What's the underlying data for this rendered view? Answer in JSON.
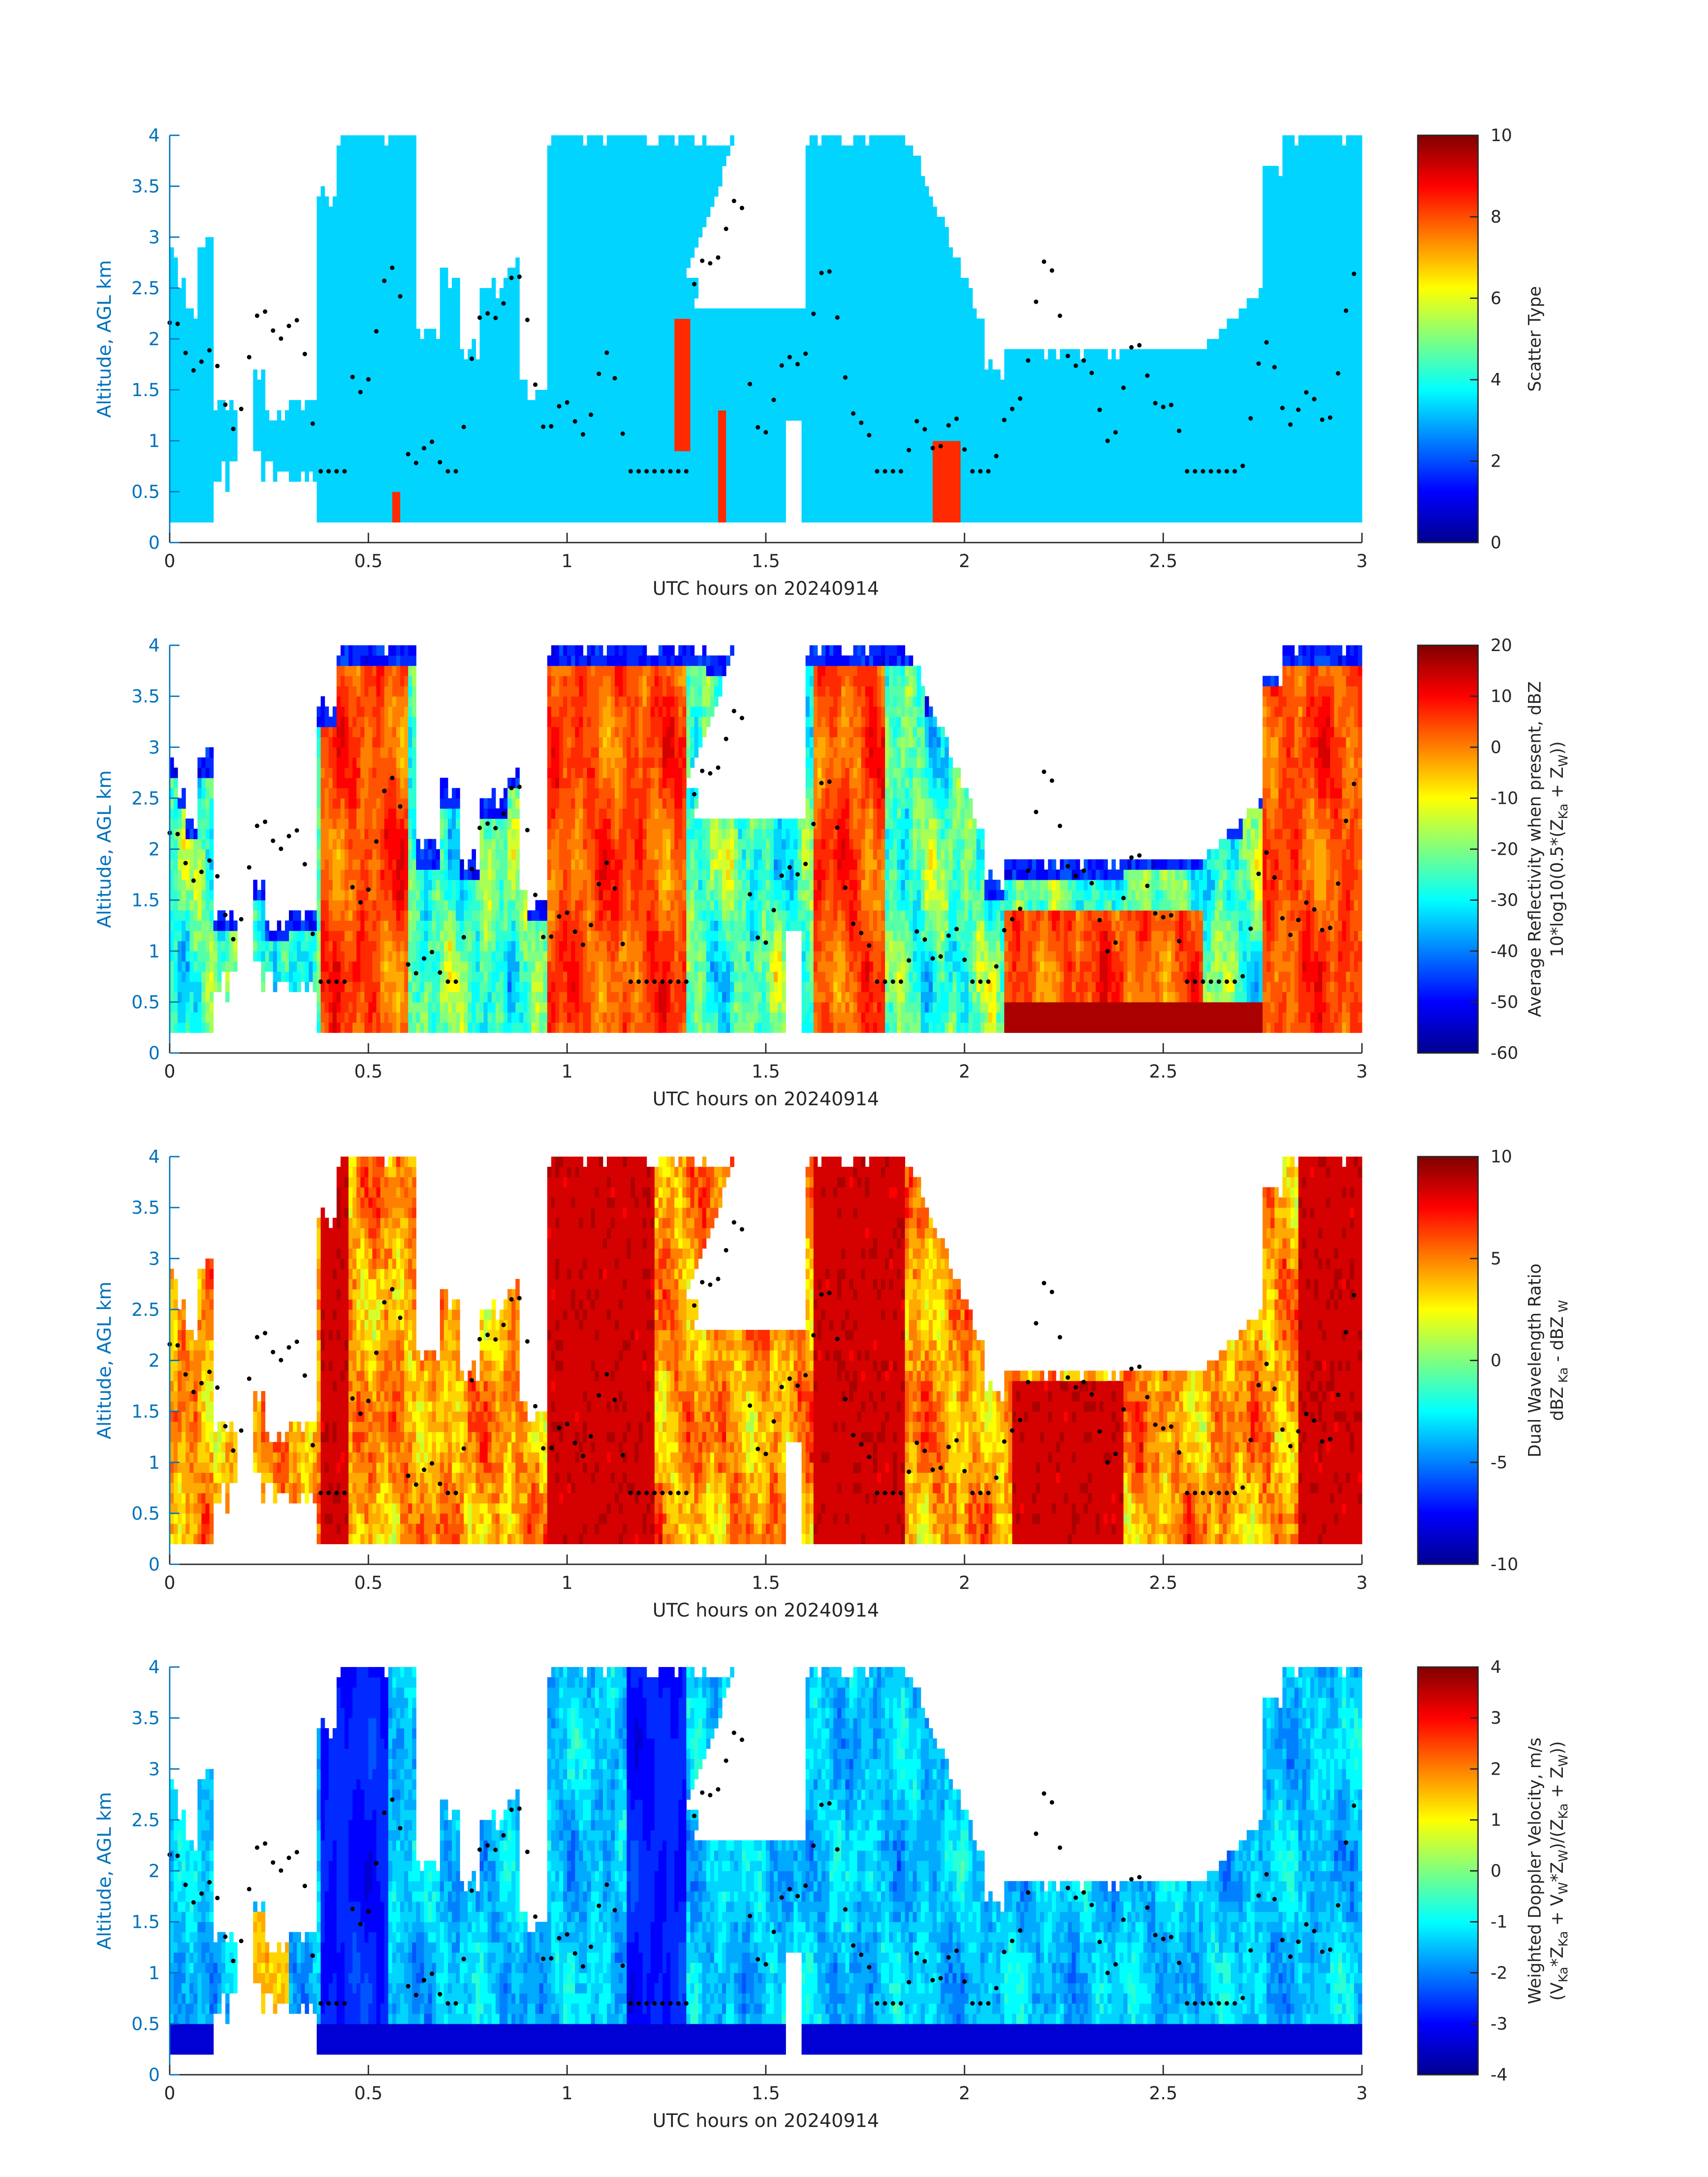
{
  "figure": {
    "date_label": "UTC hours on 20240914",
    "ylabel": "Altitude, AGL km"
  },
  "chart_data": [
    {
      "type": "heatmap",
      "title": "",
      "xlabel": "UTC hours on 20240914",
      "ylabel": "Altitude, AGL km",
      "xlim": [
        0,
        3
      ],
      "ylim": [
        0,
        4
      ],
      "xticks": [
        "0",
        "0.5",
        "1",
        "1.5",
        "2",
        "2.5",
        "3"
      ],
      "yticks": [
        "0",
        "0.5",
        "1",
        "1.5",
        "2",
        "2.5",
        "3",
        "3.5",
        "4"
      ],
      "colorbar": {
        "label_line1": "Scatter Type",
        "label_line2": "",
        "range": [
          0,
          10
        ],
        "ticks": [
          "0",
          "2",
          "4",
          "6",
          "8",
          "10"
        ]
      },
      "description_of_field": "scatter type, mostly value ~3.5 (cyan) with patches ~8.5 (orange-red)"
    },
    {
      "type": "heatmap",
      "title": "",
      "xlabel": "UTC hours on 20240914",
      "ylabel": "Altitude, AGL km",
      "xlim": [
        0,
        3
      ],
      "ylim": [
        0,
        4
      ],
      "xticks": [
        "0",
        "0.5",
        "1",
        "1.5",
        "2",
        "2.5",
        "3"
      ],
      "yticks": [
        "0",
        "0.5",
        "1",
        "1.5",
        "2",
        "2.5",
        "3",
        "3.5",
        "4"
      ],
      "colorbar": {
        "label_line1": "Average Reflectivity when present, dBZ",
        "label_line2": "10*log10(0.5*(Z",
        "range": [
          -60,
          20
        ],
        "ticks": [
          "-60",
          "-50",
          "-40",
          "-30",
          "-20",
          "-10",
          "0",
          "10",
          "20"
        ]
      }
    },
    {
      "type": "heatmap",
      "title": "",
      "xlabel": "UTC hours on 20240914",
      "ylabel": "Altitude, AGL km",
      "xlim": [
        0,
        3
      ],
      "ylim": [
        0,
        4
      ],
      "xticks": [
        "0",
        "0.5",
        "1",
        "1.5",
        "2",
        "2.5",
        "3"
      ],
      "yticks": [
        "0",
        "0.5",
        "1",
        "1.5",
        "2",
        "2.5",
        "3",
        "3.5",
        "4"
      ],
      "colorbar": {
        "label_line1": "Dual Wavelength Ratio",
        "label_line2": "dBZ",
        "range": [
          -10,
          10
        ],
        "ticks": [
          "-10",
          "-5",
          "0",
          "5",
          "10"
        ]
      }
    },
    {
      "type": "heatmap",
      "title": "",
      "xlabel": "UTC hours on 20240914",
      "ylabel": "Altitude, AGL km",
      "xlim": [
        0,
        3
      ],
      "ylim": [
        0,
        4
      ],
      "xticks": [
        "0",
        "0.5",
        "1",
        "1.5",
        "2",
        "2.5",
        "3"
      ],
      "yticks": [
        "0",
        "0.5",
        "1",
        "1.5",
        "2",
        "2.5",
        "3",
        "3.5",
        "4"
      ],
      "colorbar": {
        "label_line1": "Weighted Doppler Velocity, m/s",
        "label_line2": "(V",
        "range": [
          -4,
          4
        ],
        "ticks": [
          "-4",
          "-3",
          "-2",
          "-1",
          "0",
          "1",
          "2",
          "3",
          "4"
        ]
      }
    }
  ]
}
